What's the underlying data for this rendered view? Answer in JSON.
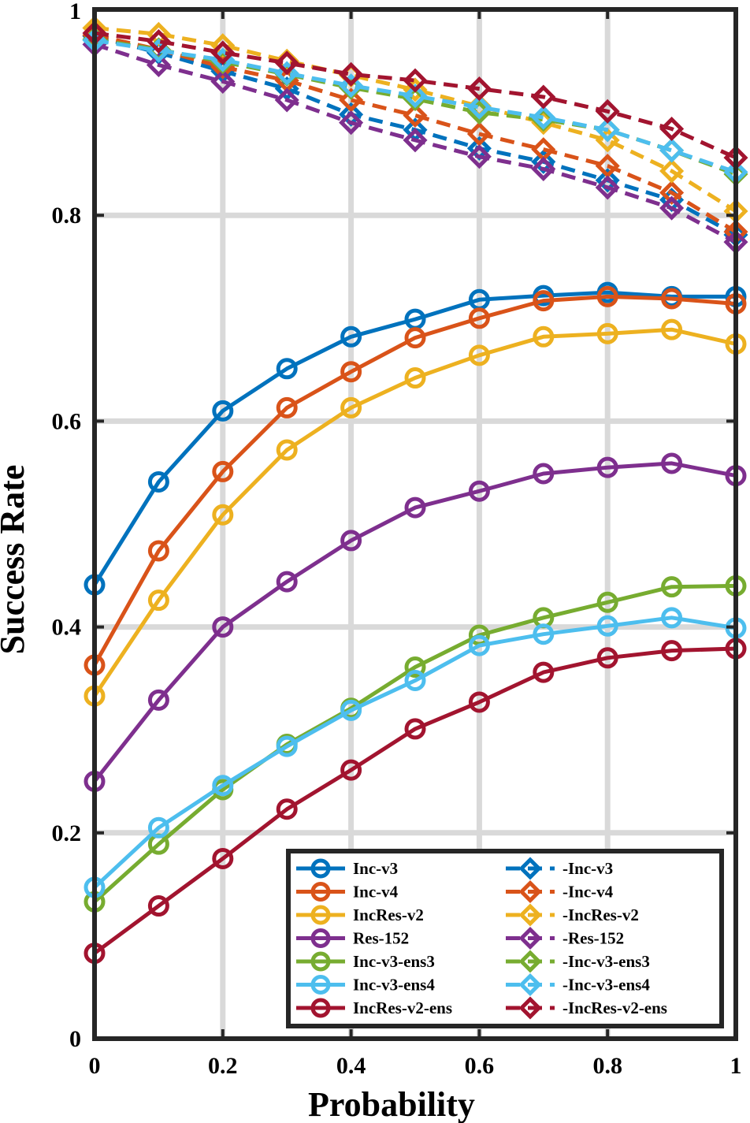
{
  "chart_data": {
    "type": "line",
    "title": "",
    "xlabel": "Probability",
    "ylabel": "Success Rate",
    "xlim": [
      0,
      1
    ],
    "ylim": [
      0,
      1
    ],
    "x": [
      0,
      0.1,
      0.2,
      0.3,
      0.4,
      0.5,
      0.6,
      0.7,
      0.8,
      0.9,
      1
    ],
    "x_ticks": [
      0,
      0.2,
      0.4,
      0.6,
      0.8,
      1
    ],
    "x_tick_labels": [
      "0",
      "0.2",
      "0.4",
      "0.6",
      "0.8",
      "1"
    ],
    "y_ticks": [
      0,
      0.2,
      0.4,
      0.6,
      0.8,
      1
    ],
    "y_tick_labels": [
      "0",
      "0.2",
      "0.4",
      "0.6",
      "0.8",
      "1"
    ],
    "grid": true,
    "legend_position": "bottom-right",
    "series": [
      {
        "name": "Inc-v3",
        "color": "#0072BD",
        "marker": "circle",
        "line": "solid",
        "values": [
          0.441,
          0.541,
          0.61,
          0.651,
          0.682,
          0.699,
          0.718,
          0.722,
          0.725,
          0.721,
          0.721
        ]
      },
      {
        "name": "Inc-v4",
        "color": "#D95319",
        "marker": "circle",
        "line": "solid",
        "values": [
          0.363,
          0.474,
          0.551,
          0.613,
          0.648,
          0.681,
          0.7,
          0.717,
          0.721,
          0.719,
          0.714
        ]
      },
      {
        "name": "IncRes-v2",
        "color": "#EDB120",
        "marker": "circle",
        "line": "solid",
        "values": [
          0.333,
          0.426,
          0.509,
          0.572,
          0.613,
          0.642,
          0.664,
          0.682,
          0.685,
          0.689,
          0.675
        ]
      },
      {
        "name": "Res-152",
        "color": "#7E2F8E",
        "marker": "circle",
        "line": "solid",
        "values": [
          0.25,
          0.329,
          0.4,
          0.444,
          0.484,
          0.516,
          0.532,
          0.549,
          0.555,
          0.559,
          0.547
        ]
      },
      {
        "name": "Inc-v3-ens3",
        "color": "#77AC30",
        "marker": "circle",
        "line": "solid",
        "values": [
          0.133,
          0.189,
          0.242,
          0.286,
          0.321,
          0.361,
          0.392,
          0.409,
          0.424,
          0.439,
          0.44
        ]
      },
      {
        "name": "Inc-v3-ens4",
        "color": "#4DBEEE",
        "marker": "circle",
        "line": "solid",
        "values": [
          0.147,
          0.205,
          0.246,
          0.284,
          0.319,
          0.348,
          0.382,
          0.393,
          0.401,
          0.409,
          0.399
        ]
      },
      {
        "name": "IncRes-v2-ens",
        "color": "#A2142F",
        "marker": "circle",
        "line": "solid",
        "values": [
          0.083,
          0.129,
          0.175,
          0.223,
          0.261,
          0.301,
          0.327,
          0.356,
          0.37,
          0.377,
          0.379
        ]
      },
      {
        "name": "-Inc-v3",
        "color": "#0072BD",
        "marker": "diamond",
        "line": "dashed",
        "values": [
          0.974,
          0.958,
          0.94,
          0.923,
          0.898,
          0.883,
          0.865,
          0.852,
          0.834,
          0.815,
          0.781
        ]
      },
      {
        "name": "-Inc-v4",
        "color": "#D95319",
        "marker": "diamond",
        "line": "dashed",
        "values": [
          0.975,
          0.961,
          0.944,
          0.931,
          0.912,
          0.897,
          0.879,
          0.864,
          0.848,
          0.822,
          0.784
        ]
      },
      {
        "name": "-IncRes-v2",
        "color": "#EDB120",
        "marker": "diamond",
        "line": "dashed",
        "values": [
          0.982,
          0.976,
          0.965,
          0.95,
          0.936,
          0.922,
          0.906,
          0.89,
          0.873,
          0.843,
          0.804
        ]
      },
      {
        "name": "-Res-152",
        "color": "#7E2F8E",
        "marker": "diamond",
        "line": "dashed",
        "values": [
          0.966,
          0.946,
          0.93,
          0.912,
          0.89,
          0.873,
          0.857,
          0.845,
          0.827,
          0.807,
          0.774
        ]
      },
      {
        "name": "-Inc-v3-ens3",
        "color": "#77AC30",
        "marker": "diamond",
        "line": "dashed",
        "values": [
          0.971,
          0.961,
          0.949,
          0.937,
          0.924,
          0.913,
          0.9,
          0.893,
          0.883,
          0.863,
          0.84
        ]
      },
      {
        "name": "-Inc-v3-ens4",
        "color": "#4DBEEE",
        "marker": "diamond",
        "line": "dashed",
        "values": [
          0.97,
          0.96,
          0.951,
          0.938,
          0.926,
          0.916,
          0.905,
          0.895,
          0.883,
          0.863,
          0.842
        ]
      },
      {
        "name": "-IncRes-v2-ens",
        "color": "#A2142F",
        "marker": "diamond",
        "line": "dashed",
        "values": [
          0.977,
          0.969,
          0.958,
          0.948,
          0.937,
          0.931,
          0.923,
          0.915,
          0.901,
          0.884,
          0.856
        ]
      }
    ]
  }
}
